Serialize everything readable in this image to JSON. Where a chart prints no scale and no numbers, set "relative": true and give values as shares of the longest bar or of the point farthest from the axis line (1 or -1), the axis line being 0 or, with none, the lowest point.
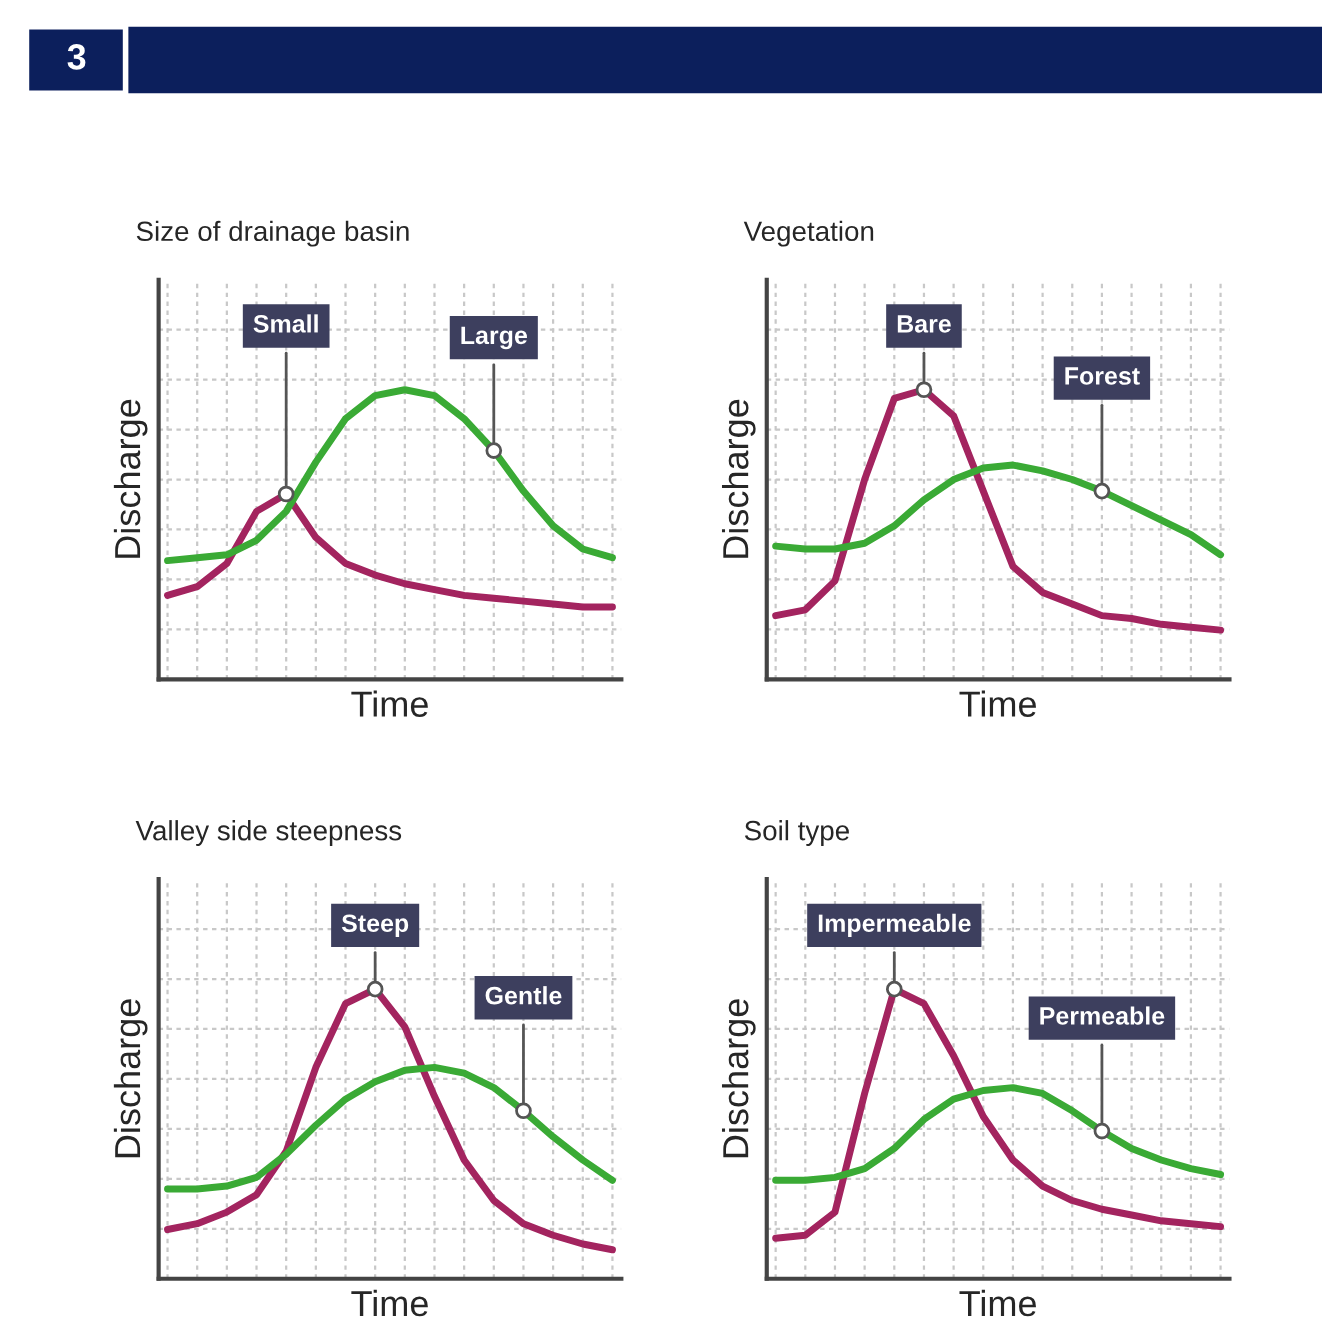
{
  "chart_data": [
    {
      "type": "line",
      "title": "Size of drainage basin",
      "xlabel": "Time",
      "ylabel": "Discharge",
      "relative": true,
      "grid": true,
      "tick_labels": false,
      "annotations": [
        "3"
      ],
      "categories": [
        null,
        null,
        null,
        null,
        null,
        null,
        null,
        null,
        null,
        null,
        null,
        null,
        null,
        null,
        null,
        null
      ],
      "series": [
        {
          "name": "Small",
          "color": "#a3245f",
          "values": [
            0.29,
            0.32,
            0.4,
            0.58,
            0.64,
            0.49,
            0.4,
            0.36,
            0.33,
            0.31,
            0.29,
            0.28,
            0.27,
            0.26,
            0.25,
            0.25
          ]
        },
        {
          "name": "Large",
          "color": "#3aaa35",
          "values": [
            0.41,
            0.42,
            0.43,
            0.48,
            0.58,
            0.75,
            0.9,
            0.98,
            1,
            0.98,
            0.9,
            0.79,
            0.65,
            0.53,
            0.45,
            0.42
          ]
        }
      ]
    },
    {
      "type": "line",
      "title": "Vegetation",
      "xlabel": "Time",
      "ylabel": "Discharge",
      "relative": true,
      "grid": true,
      "tick_labels": false,
      "categories": [
        null,
        null,
        null,
        null,
        null,
        null,
        null,
        null,
        null,
        null,
        null,
        null,
        null,
        null,
        null,
        null
      ],
      "series": [
        {
          "name": "Bare",
          "color": "#a3245f",
          "values": [
            0.22,
            0.24,
            0.34,
            0.69,
            0.97,
            1,
            0.91,
            0.65,
            0.39,
            0.3,
            0.26,
            0.22,
            0.21,
            0.19,
            0.18,
            0.17
          ]
        },
        {
          "name": "Forest",
          "color": "#3aaa35",
          "values": [
            0.46,
            0.45,
            0.45,
            0.47,
            0.53,
            0.62,
            0.69,
            0.73,
            0.74,
            0.72,
            0.69,
            0.65,
            0.6,
            0.55,
            0.5,
            0.43
          ]
        }
      ]
    },
    {
      "type": "line",
      "title": "Valley side steepness",
      "xlabel": "Time",
      "ylabel": "Discharge",
      "relative": true,
      "grid": true,
      "tick_labels": false,
      "categories": [
        null,
        null,
        null,
        null,
        null,
        null,
        null,
        null,
        null,
        null,
        null,
        null,
        null,
        null,
        null,
        null
      ],
      "series": [
        {
          "name": "Steep",
          "color": "#a3245f",
          "values": [
            0.17,
            0.19,
            0.23,
            0.29,
            0.44,
            0.73,
            0.95,
            1,
            0.87,
            0.63,
            0.41,
            0.27,
            0.19,
            0.15,
            0.12,
            0.1
          ]
        },
        {
          "name": "Gentle",
          "color": "#3aaa35",
          "values": [
            0.31,
            0.31,
            0.32,
            0.35,
            0.43,
            0.53,
            0.62,
            0.68,
            0.72,
            0.73,
            0.71,
            0.66,
            0.58,
            0.49,
            0.41,
            0.34
          ]
        }
      ]
    },
    {
      "type": "line",
      "title": "Soil type",
      "xlabel": "Time",
      "ylabel": "Discharge",
      "relative": true,
      "grid": true,
      "tick_labels": false,
      "categories": [
        null,
        null,
        null,
        null,
        null,
        null,
        null,
        null,
        null,
        null,
        null,
        null,
        null,
        null,
        null,
        null
      ],
      "series": [
        {
          "name": "Impermeable",
          "color": "#a3245f",
          "values": [
            0.14,
            0.15,
            0.23,
            0.64,
            1,
            0.95,
            0.77,
            0.56,
            0.41,
            0.32,
            0.27,
            0.24,
            0.22,
            0.2,
            0.19,
            0.18
          ]
        },
        {
          "name": "Permeable",
          "color": "#3aaa35",
          "values": [
            0.34,
            0.34,
            0.35,
            0.38,
            0.45,
            0.55,
            0.62,
            0.65,
            0.66,
            0.64,
            0.58,
            0.51,
            0.45,
            0.41,
            0.38,
            0.36
          ]
        }
      ]
    }
  ]
}
